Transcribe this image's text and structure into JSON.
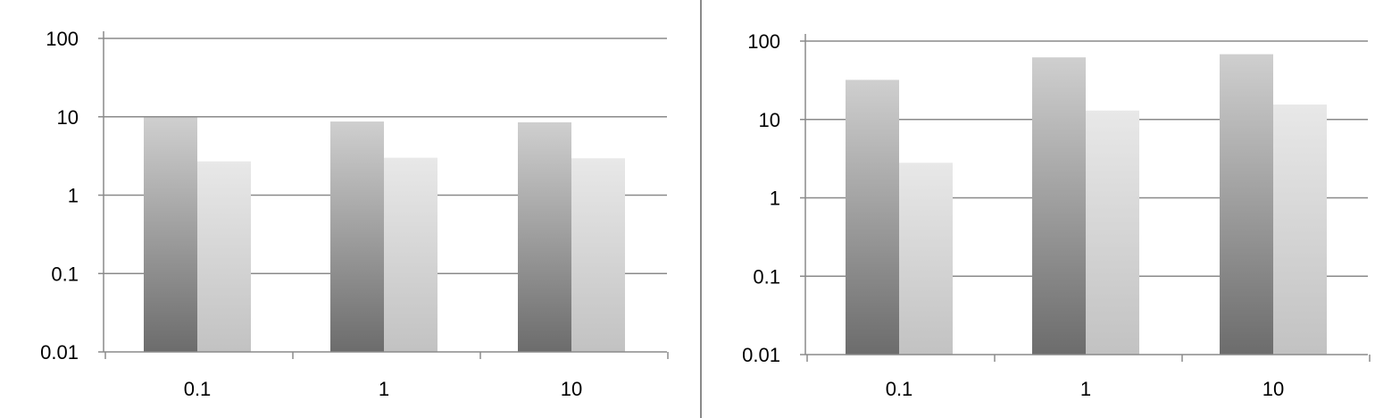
{
  "chart_data": [
    {
      "type": "bar",
      "yscale": "log",
      "ylim": [
        0.01,
        100
      ],
      "yticks": [
        "0.01",
        "0.1",
        "1",
        "10",
        "100"
      ],
      "categories": [
        "0.1",
        "1",
        "10"
      ],
      "grid": true,
      "series": [
        {
          "values": [
            9.8,
            8.7,
            8.5
          ],
          "color": "#8e8e8e"
        },
        {
          "values": [
            2.7,
            3.0,
            2.95
          ],
          "color": "#d6d6d6"
        }
      ]
    },
    {
      "type": "bar",
      "yscale": "log",
      "ylim": [
        0.01,
        100
      ],
      "yticks": [
        "0.01",
        "0.1",
        "1",
        "10",
        "100"
      ],
      "categories": [
        "0.1",
        "1",
        "10"
      ],
      "grid": true,
      "series": [
        {
          "values": [
            32,
            62,
            68
          ],
          "color": "#8e8e8e"
        },
        {
          "values": [
            2.8,
            13,
            15.5
          ],
          "color": "#d6d6d6"
        }
      ]
    }
  ]
}
